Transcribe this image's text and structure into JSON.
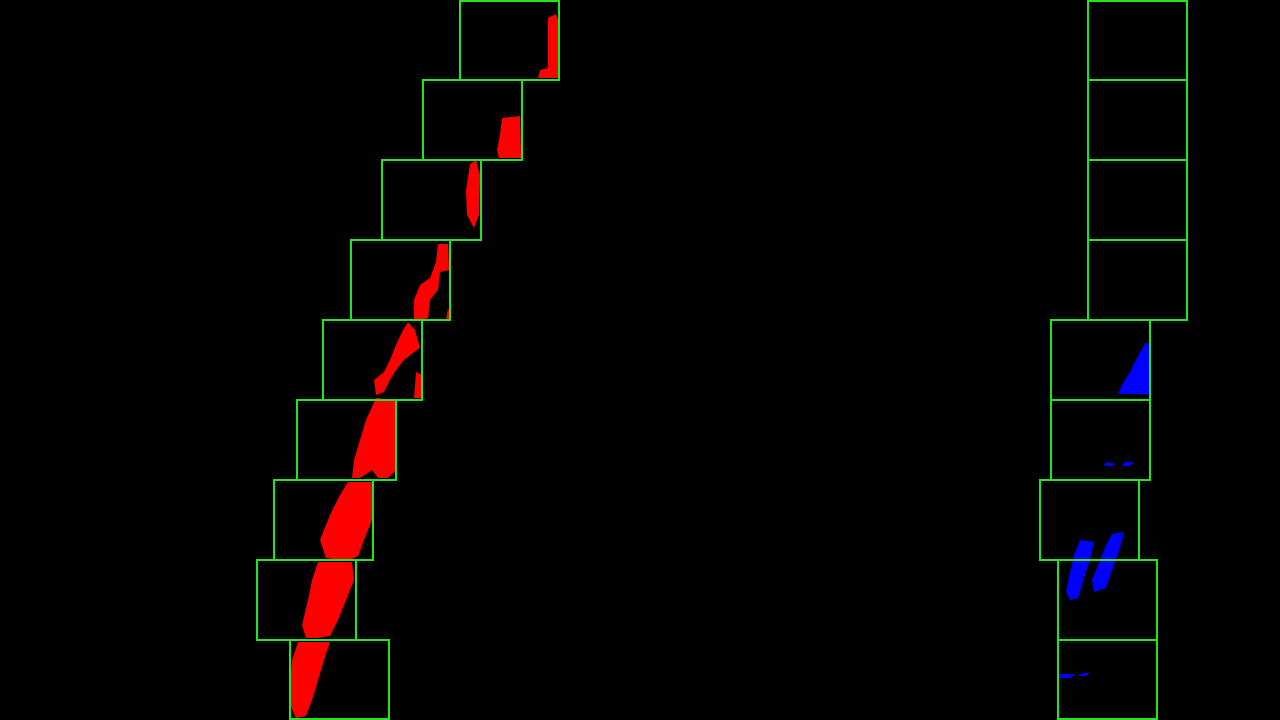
{
  "image": {
    "description_kind": "lane-detection sliding-window binary warped view",
    "background_color": "#000000",
    "window_color": "#22e51f",
    "left_lane_pixel_color": "#ff0000",
    "right_lane_pixel_color": "#0000ff",
    "left_lane_windows": 9,
    "right_lane_windows": 9
  }
}
